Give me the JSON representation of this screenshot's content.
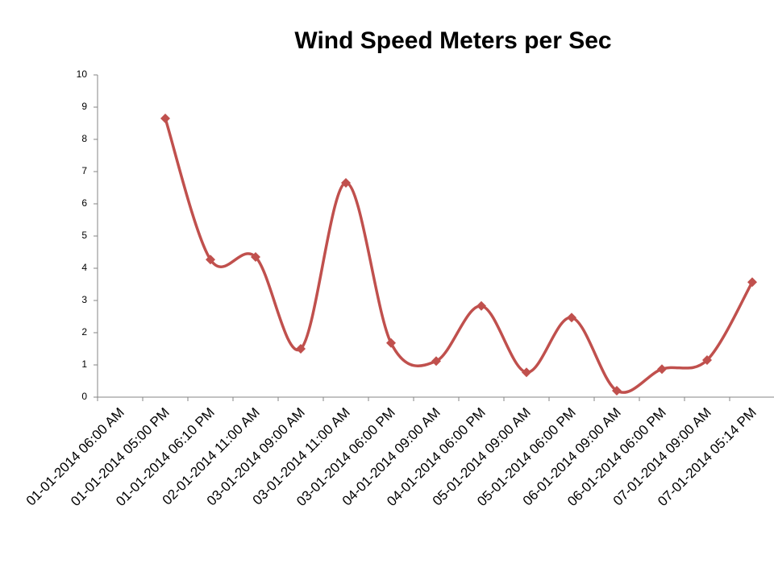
{
  "chart_data": {
    "type": "line",
    "title": "Wind Speed Meters per Sec",
    "categories": [
      "01-01-2014 06:00 AM",
      "01-01-2014 05:00 PM",
      "01-01-2014 06:10 PM",
      "02-01-2014 11:00 AM",
      "03-01-2014 09:00 AM",
      "03-01-2014 11:00 AM",
      "03-01-2014 06:00 PM",
      "04-01-2014 09:00 AM",
      "04-01-2014 06:00 PM",
      "05-01-2014 09:00 AM",
      "05-01-2014 06:00 PM",
      "06-01-2014 09:00 AM",
      "06-01-2014 06:00 PM",
      "07-01-2014 09:00 AM",
      "07-01-2014 05:14 PM"
    ],
    "values": [
      null,
      8.65,
      4.27,
      4.35,
      1.5,
      6.65,
      1.68,
      1.12,
      2.83,
      0.77,
      2.47,
      0.2,
      0.87,
      1.15,
      3.57
    ],
    "color": "#c0504d",
    "smooth": true,
    "ylim": [
      0,
      10
    ],
    "yticks": [
      0,
      1,
      2,
      3,
      4,
      5,
      6,
      7,
      8,
      9,
      10
    ],
    "grid": false
  }
}
